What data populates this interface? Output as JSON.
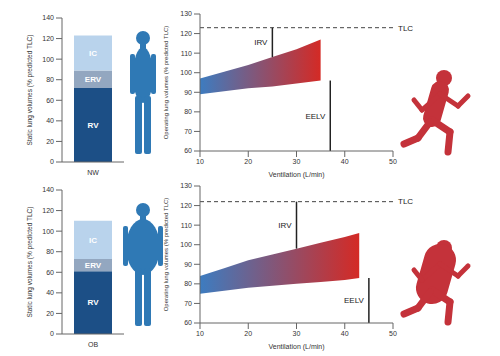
{
  "chart_data": [
    {
      "type": "bar",
      "stacked": true,
      "categories": [
        "NW"
      ],
      "y_label": "Static lung volumes (% predicted TLC)",
      "ylim": [
        0,
        140
      ],
      "yticks": [
        0,
        20,
        40,
        60,
        80,
        100,
        120,
        140
      ],
      "series": [
        {
          "name": "RV",
          "color": "#1c4f86",
          "values": [
            72
          ]
        },
        {
          "name": "ERV",
          "color": "#93a7c0",
          "values": [
            17
          ]
        },
        {
          "name": "IC",
          "color": "#b9d3ec",
          "values": [
            34
          ]
        }
      ]
    },
    {
      "type": "area",
      "x": [
        10,
        15,
        20,
        25,
        30,
        35
      ],
      "low": [
        89,
        90.5,
        92,
        93,
        94.5,
        96
      ],
      "high": [
        97,
        100.5,
        104,
        108,
        112,
        117
      ],
      "colors": [
        "#3d7cc0",
        "#d42a25"
      ],
      "x_label": "Ventilation (L/min)",
      "y_label": "Operating lung volumes (% predicted TLC)",
      "xlim": [
        10,
        50
      ],
      "xticks": [
        10,
        20,
        30,
        40,
        50
      ],
      "ylim": [
        60,
        130
      ],
      "yticks": [
        60,
        70,
        80,
        90,
        100,
        110,
        120,
        130
      ],
      "reference_line": {
        "value": 123,
        "label": "TLC"
      },
      "annotations": [
        "IRV",
        "EELV"
      ]
    },
    {
      "type": "bar",
      "stacked": true,
      "categories": [
        "OB"
      ],
      "y_label": "Static lung volumes (% predicted TLC)",
      "ylim": [
        0,
        140
      ],
      "yticks": [
        0,
        20,
        40,
        60,
        80,
        100,
        120,
        140
      ],
      "series": [
        {
          "name": "RV",
          "color": "#1c4f86",
          "values": [
            61
          ]
        },
        {
          "name": "ERV",
          "color": "#93a7c0",
          "values": [
            12
          ]
        },
        {
          "name": "IC",
          "color": "#b9d3ec",
          "values": [
            37
          ]
        }
      ]
    },
    {
      "type": "area",
      "x": [
        10,
        15,
        20,
        25,
        30,
        35,
        40,
        43
      ],
      "low": [
        75,
        76.5,
        78,
        79,
        80,
        81,
        82,
        83
      ],
      "high": [
        84,
        88,
        92,
        95,
        98,
        101,
        104,
        106
      ],
      "colors": [
        "#3d7cc0",
        "#d42a25"
      ],
      "x_label": "Ventilation (L/min)",
      "y_label": "Operating lung volumes (% predicted TLC)",
      "xlim": [
        10,
        50
      ],
      "xticks": [
        10,
        20,
        30,
        40,
        50
      ],
      "ylim": [
        60,
        130
      ],
      "yticks": [
        60,
        70,
        80,
        90,
        100,
        110,
        120,
        130
      ],
      "reference_line": {
        "value": 122,
        "label": "TLC"
      },
      "annotations": [
        "IRV",
        "EELV"
      ]
    }
  ]
}
